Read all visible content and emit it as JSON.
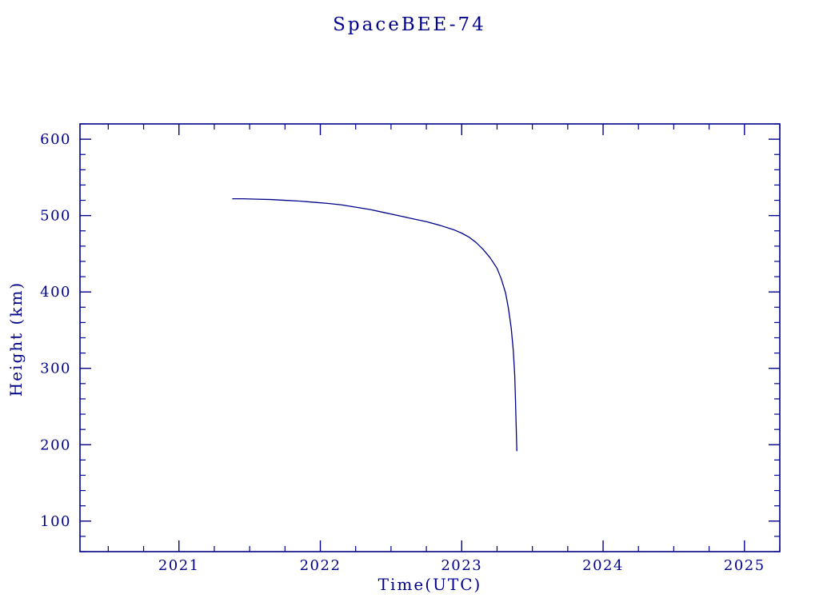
{
  "page": {
    "background": "#ffffff"
  },
  "colors": {
    "accent": "#00008B",
    "frame": "#00008B",
    "curve": "#00008B"
  },
  "chart_data": {
    "type": "line",
    "title": "SpaceBEE-74",
    "xlabel": "Time(UTC)",
    "ylabel": "Height (km)",
    "xlim": [
      2020.3,
      2025.25
    ],
    "ylim": [
      60,
      620
    ],
    "x_ticks": [
      2021,
      2022,
      2023,
      2024,
      2025
    ],
    "y_ticks": [
      100,
      200,
      300,
      400,
      500,
      600
    ],
    "x_minor_step": 0.25,
    "y_minor_step": 20,
    "grid": false,
    "legend_position": "none",
    "series": [
      {
        "name": "SpaceBEE-74 orbital height",
        "color": "#00008B",
        "x": [
          2021.38,
          2021.45,
          2021.55,
          2021.65,
          2021.75,
          2021.85,
          2021.95,
          2022.05,
          2022.15,
          2022.25,
          2022.35,
          2022.45,
          2022.55,
          2022.65,
          2022.75,
          2022.85,
          2022.95,
          2023.0,
          2023.05,
          2023.1,
          2023.15,
          2023.2,
          2023.25,
          2023.28,
          2023.31,
          2023.33,
          2023.35,
          2023.365,
          2023.375,
          2023.38,
          2023.385,
          2023.39
        ],
        "y": [
          522,
          522,
          521.5,
          521,
          520,
          519,
          517.5,
          516,
          514,
          511,
          508,
          504,
          500,
          496,
          492,
          487,
          481,
          477,
          472,
          465,
          456,
          445,
          431,
          417,
          399,
          379,
          353,
          323,
          291,
          261,
          226,
          192
        ]
      }
    ]
  }
}
